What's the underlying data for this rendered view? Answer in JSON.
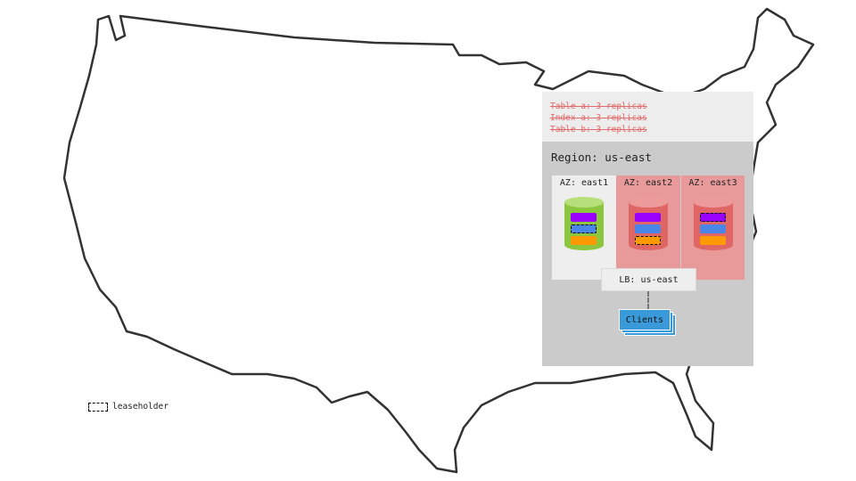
{
  "replication_notes": [
    "Table a: 3 replicas",
    "Index a: 3 replicas",
    "Table b: 3 replicas"
  ],
  "region": {
    "label": "Region: us-east"
  },
  "azs": [
    {
      "label": "AZ: east1",
      "status": "healthy",
      "leaseholder": "blue"
    },
    {
      "label": "AZ: east2",
      "status": "failed",
      "leaseholder": "orange"
    },
    {
      "label": "AZ: east3",
      "status": "failed",
      "leaseholder": "purple"
    }
  ],
  "load_balancer": {
    "label": "LB: us-east"
  },
  "clients": {
    "label": "Clients"
  },
  "legend": {
    "leaseholder_label": "leaseholder"
  },
  "colors": {
    "healthy_node": "#8cc63f",
    "failed_node": "#e06666",
    "failed_zone": "#e89a9a",
    "replica_purple": "#9900ff",
    "replica_blue": "#4a86e8",
    "replica_orange": "#ff9900",
    "clients": "#3a9ad9",
    "strikethrough": "#e06a6a"
  }
}
